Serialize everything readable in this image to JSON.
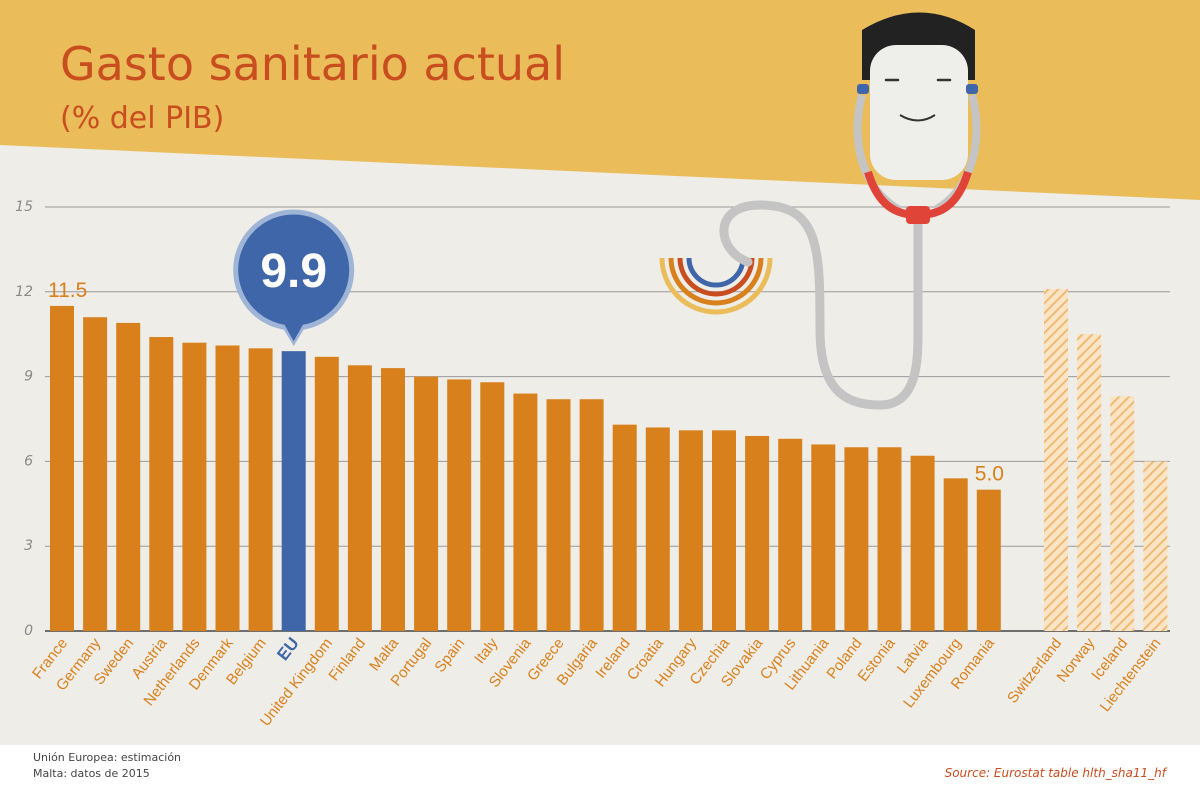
{
  "colors": {
    "banner": "#eabd5a",
    "plot_background": "#efede8",
    "bar": "#d8801c",
    "bar_highlight": "#3f66a8",
    "bar_hatched": "#f0c48a",
    "title": "#c84d1f"
  },
  "chart_data": {
    "type": "bar",
    "title": "Gasto sanitario actual",
    "subtitle": "(% del PIB)",
    "ylim": [
      0,
      15
    ],
    "yticks": [
      "0",
      "3",
      "6",
      "9",
      "12",
      "15"
    ],
    "grid": true,
    "categories": [
      "France",
      "Germany",
      "Sweden",
      "Austria",
      "Netherlands",
      "Denmark",
      "Belgium",
      "EU",
      "United Kingdom",
      "Finland",
      "Malta",
      "Portugal",
      "Spain",
      "Italy",
      "Slovenia",
      "Greece",
      "Bulgaria",
      "Ireland",
      "Croatia",
      "Hungary",
      "Czechia",
      "Slovakia",
      "Cyprus",
      "Lithuania",
      "Poland",
      "Estonia",
      "Latvia",
      "Luxembourg",
      "Romania",
      "Switzerland",
      "Norway",
      "Iceland",
      "Liechtenstein"
    ],
    "values": [
      11.5,
      11.1,
      10.9,
      10.4,
      10.2,
      10.1,
      10.0,
      9.9,
      9.7,
      9.4,
      9.3,
      9.0,
      8.9,
      8.8,
      8.4,
      8.2,
      8.2,
      7.3,
      7.2,
      7.1,
      7.1,
      6.9,
      6.8,
      6.6,
      6.5,
      6.5,
      6.2,
      5.4,
      5.0,
      12.1,
      10.5,
      8.3,
      6.0
    ],
    "highlight": "EU",
    "hatched": [
      "Switzerland",
      "Norway",
      "Iceland",
      "Liechtenstein"
    ],
    "value_labels": {
      "France": "11.5",
      "EU": "9.9",
      "Romania": "5.0"
    }
  },
  "notes": [
    "Unión Europea: estimación",
    "Malta: datos de 2015"
  ],
  "source": "Source: Eurostat table hlth_sha11_hf"
}
